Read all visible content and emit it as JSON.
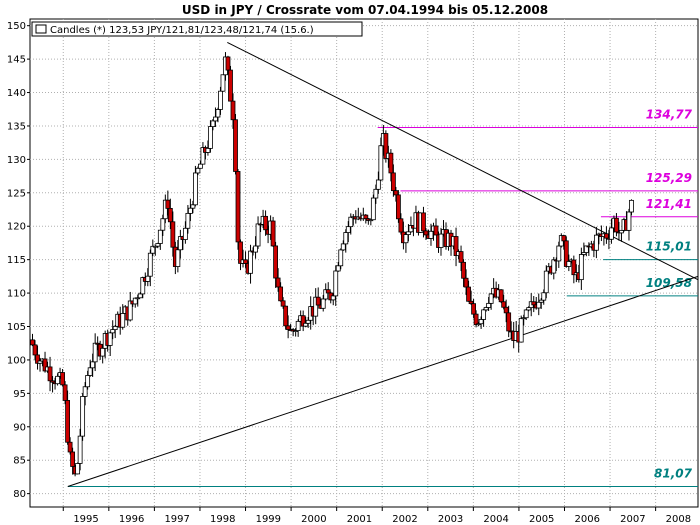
{
  "chart_data": {
    "type": "candlestick",
    "title": "USD in JPY / Crossrate vom 07.04.1994 bis 05.12.2008",
    "legend": {
      "text": "Candles (*) 123,53 JPY/121,81/123,48/121,74 (15.6.)",
      "placement": "top-left"
    },
    "ylim": [
      78,
      151
    ],
    "xlim": [
      1994.27,
      2008.93
    ],
    "y_ticks": [
      80,
      85,
      90,
      95,
      100,
      105,
      110,
      115,
      120,
      125,
      130,
      135,
      140,
      145,
      150
    ],
    "x_ticks": [
      "1995",
      "1996",
      "1997",
      "1998",
      "1999",
      "2000",
      "2001",
      "2002",
      "2003",
      "2004",
      "2005",
      "2006",
      "2007",
      "2008"
    ],
    "grid": true,
    "colors": {
      "up_candle": "#ffffff",
      "down_candle": "#cc0000",
      "resistance": "#dd00dd",
      "support": "#008080",
      "trendline": "#000000"
    },
    "horizontal_levels": [
      {
        "label": "134,77",
        "value": 134.77,
        "from": 2001.9,
        "kind": "resistance"
      },
      {
        "label": "125,29",
        "value": 125.29,
        "from": 2002.4,
        "kind": "resistance"
      },
      {
        "label": "121,41",
        "value": 121.41,
        "from": 2006.8,
        "kind": "resistance"
      },
      {
        "label": "115,01",
        "value": 115.01,
        "from": 2006.85,
        "kind": "support"
      },
      {
        "label": "109,58",
        "value": 109.58,
        "from": 2006.05,
        "kind": "support"
      },
      {
        "label": "81,07",
        "value": 81.07,
        "from": 1995.1,
        "kind": "support"
      }
    ],
    "trendlines": [
      {
        "x1": 1998.6,
        "y1": 147.5,
        "x2": 2008.93,
        "y2": 112.0
      },
      {
        "x1": 1995.1,
        "y1": 81.07,
        "x2": 2008.93,
        "y2": 112.5
      }
    ],
    "price_path": [
      [
        1994.27,
        103.0
      ],
      [
        1994.5,
        100.0
      ],
      [
        1994.75,
        98.0
      ],
      [
        1995.0,
        96.0
      ],
      [
        1995.15,
        85.0
      ],
      [
        1995.28,
        82.0
      ],
      [
        1995.45,
        95.0
      ],
      [
        1995.6,
        100.0
      ],
      [
        1995.8,
        102.0
      ],
      [
        1996.0,
        104.0
      ],
      [
        1996.25,
        106.0
      ],
      [
        1996.5,
        108.0
      ],
      [
        1996.75,
        112.0
      ],
      [
        1997.0,
        117.0
      ],
      [
        1997.3,
        124.0
      ],
      [
        1997.45,
        114.0
      ],
      [
        1997.7,
        120.0
      ],
      [
        1997.95,
        128.0
      ],
      [
        1998.3,
        135.0
      ],
      [
        1998.55,
        145.0
      ],
      [
        1998.75,
        136.0
      ],
      [
        1998.85,
        115.0
      ],
      [
        1999.0,
        113.0
      ],
      [
        1999.3,
        120.0
      ],
      [
        1999.55,
        120.0
      ],
      [
        1999.75,
        108.0
      ],
      [
        2000.0,
        104.0
      ],
      [
        2000.3,
        107.0
      ],
      [
        2000.6,
        108.0
      ],
      [
        2000.9,
        110.0
      ],
      [
        2001.1,
        118.0
      ],
      [
        2001.4,
        122.0
      ],
      [
        2001.7,
        120.0
      ],
      [
        2001.85,
        125.0
      ],
      [
        2002.0,
        133.0
      ],
      [
        2002.2,
        128.0
      ],
      [
        2002.45,
        119.0
      ],
      [
        2002.7,
        121.0
      ],
      [
        2002.95,
        120.0
      ],
      [
        2003.2,
        118.0
      ],
      [
        2003.5,
        118.0
      ],
      [
        2003.7,
        115.0
      ],
      [
        2003.9,
        108.0
      ],
      [
        2004.1,
        106.0
      ],
      [
        2004.35,
        110.0
      ],
      [
        2004.6,
        109.0
      ],
      [
        2004.85,
        103.0
      ],
      [
        2005.0,
        104.0
      ],
      [
        2005.3,
        108.0
      ],
      [
        2005.6,
        112.0
      ],
      [
        2005.9,
        118.0
      ],
      [
        2006.0,
        116.0
      ],
      [
        2006.25,
        112.0
      ],
      [
        2006.45,
        116.0
      ],
      [
        2006.7,
        118.0
      ],
      [
        2006.95,
        119.0
      ],
      [
        2007.1,
        121.0
      ],
      [
        2007.25,
        118.0
      ],
      [
        2007.4,
        122.0
      ],
      [
        2007.5,
        123.5
      ]
    ]
  }
}
